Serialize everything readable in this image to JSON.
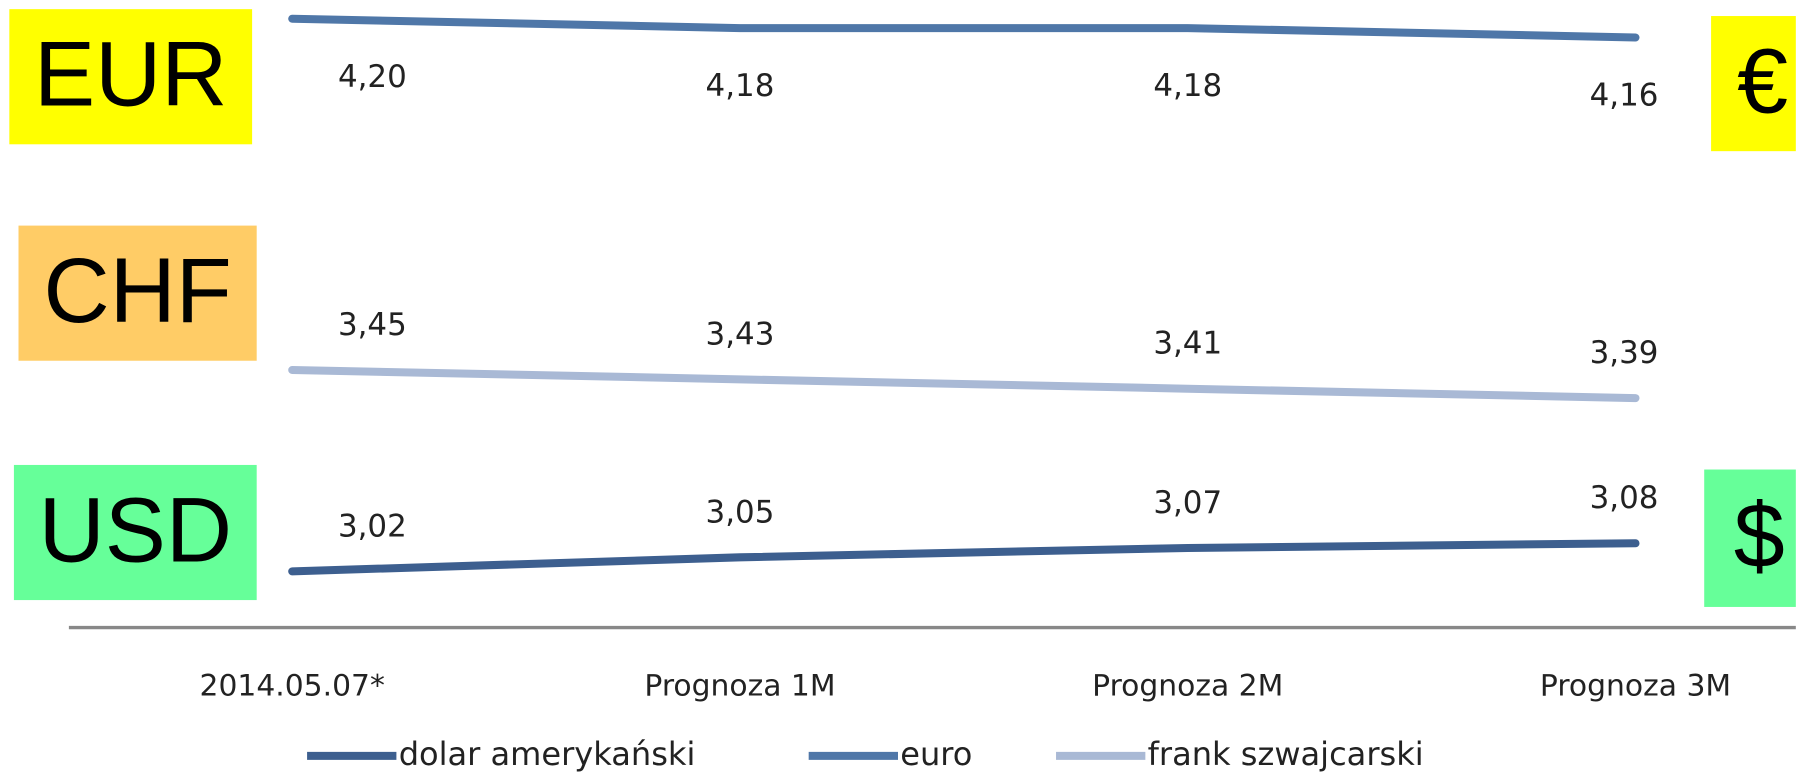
{
  "chart_data": {
    "type": "line",
    "categories": [
      "2014.05.07*",
      "Prognoza 1M",
      "Prognoza 2M",
      "Prognoza 3M"
    ],
    "series": [
      {
        "name": "dolar amerykański",
        "color": "#3d5f8f",
        "values": [
          3.02,
          3.05,
          3.07,
          3.08
        ],
        "value_labels": [
          "3,02",
          "3,05",
          "3,07",
          "3,08"
        ]
      },
      {
        "name": "euro",
        "color": "#4f77a8",
        "values": [
          4.2,
          4.18,
          4.18,
          4.16
        ],
        "value_labels": [
          "4,20",
          "4,18",
          "4,18",
          "4,16"
        ]
      },
      {
        "name": "frank szwajcarski",
        "color": "#a9b9d5",
        "values": [
          3.45,
          3.43,
          3.41,
          3.39
        ],
        "value_labels": [
          "3,45",
          "3,43",
          "3,41",
          "3,39"
        ]
      }
    ],
    "ylim": [
      2.9,
      4.24
    ],
    "annotations": [
      {
        "text": "EUR",
        "color": "#ffff00"
      },
      {
        "text": "CHF",
        "color": "#ffcc66"
      },
      {
        "text": "USD",
        "color": "#66ff99"
      },
      {
        "text": "€",
        "color": "#ffff00"
      },
      {
        "text": "$",
        "color": "#66ff99"
      }
    ]
  }
}
